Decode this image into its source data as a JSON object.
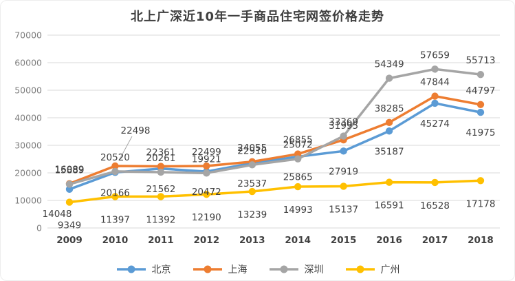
{
  "chart_data": {
    "type": "line",
    "title": "北上广深近10年一手商品住宅网签价格走势",
    "categories": [
      "2009",
      "2010",
      "2011",
      "2012",
      "2013",
      "2014",
      "2015",
      "2016",
      "2017",
      "2018"
    ],
    "series": [
      {
        "key": "beijing",
        "name": "北京",
        "color": "#5B9BD5",
        "label_placement": "below",
        "values": [
          14048,
          20166,
          21562,
          20472,
          23537,
          25865,
          27919,
          35187,
          45274,
          41975
        ]
      },
      {
        "key": "shanghai",
        "name": "上海",
        "color": "#ED7D31",
        "label_placement": "above",
        "values": [
          16089,
          22498,
          22361,
          22499,
          24055,
          26855,
          31995,
          38285,
          47844,
          44797
        ]
      },
      {
        "key": "shenzhen",
        "name": "深圳",
        "color": "#A5A5A5",
        "label_placement": "above",
        "values": [
          15889,
          20520,
          20261,
          19921,
          22910,
          25072,
          33369,
          54349,
          57659,
          55713
        ]
      },
      {
        "key": "guangzhou",
        "name": "广州",
        "color": "#FFC000",
        "label_placement": "below",
        "values": [
          9349,
          11397,
          11392,
          12190,
          13239,
          14993,
          15137,
          16591,
          16528,
          17178
        ]
      }
    ],
    "y_axis": {
      "min": 0,
      "max": 70000,
      "step": 10000,
      "tick_labels": [
        "70000",
        "60000",
        "50000",
        "40000",
        "30000",
        "20000",
        "10000",
        "0"
      ]
    },
    "annotations": [
      {
        "type": "callout",
        "series": "shanghai",
        "category": "2010",
        "text": "22498"
      }
    ],
    "legend": {
      "position": "bottom",
      "items": [
        "北京",
        "上海",
        "深圳",
        "广州"
      ]
    },
    "grid": true
  }
}
